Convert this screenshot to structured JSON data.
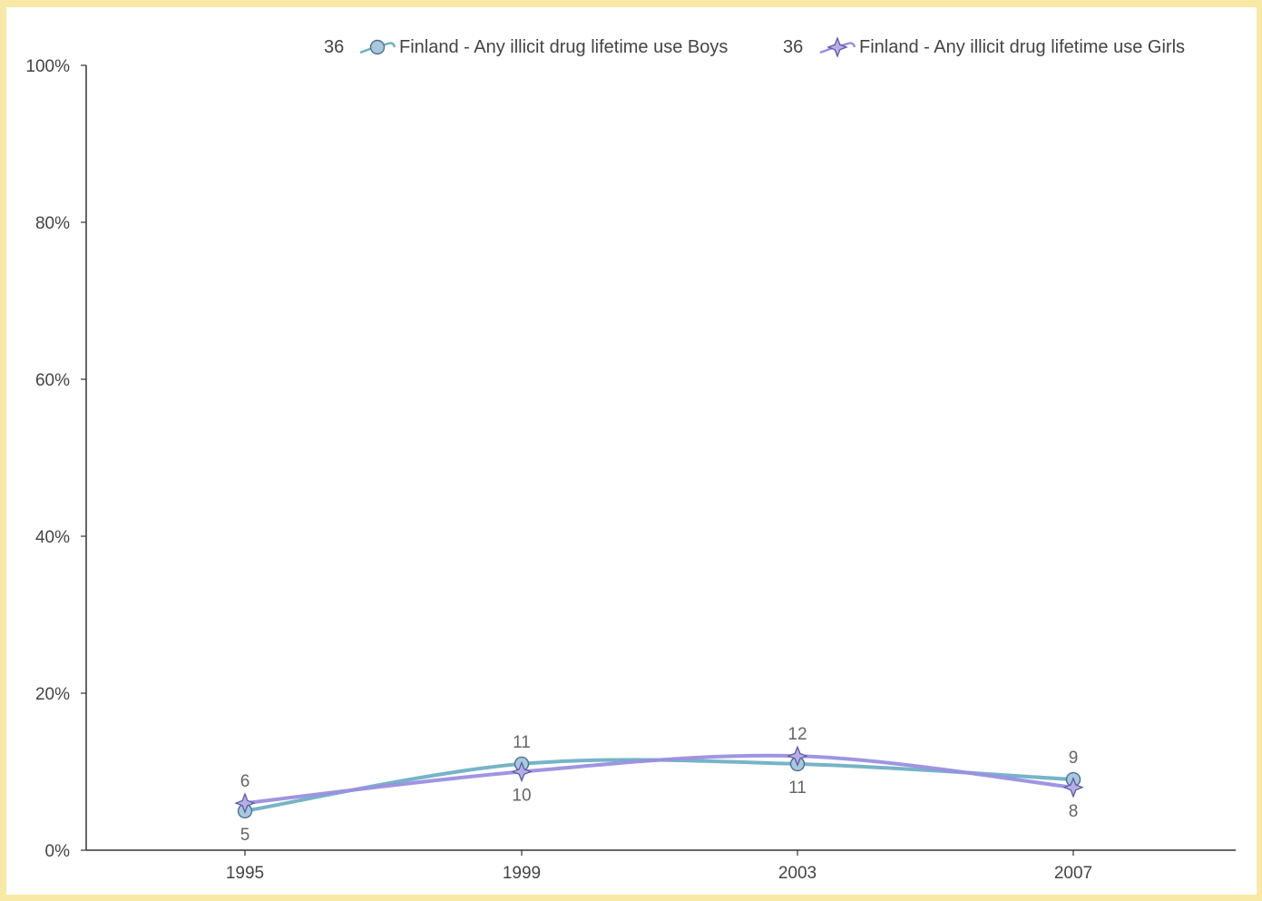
{
  "chart_data": {
    "type": "line",
    "x": [
      "1995",
      "1999",
      "2003",
      "2007"
    ],
    "yticks": [
      "0%",
      "20%",
      "40%",
      "60%",
      "80%",
      "100%"
    ],
    "ylim": [
      0,
      100
    ],
    "grid": false,
    "legend_position": "top-right",
    "series": [
      {
        "name": "Finland - Any illicit drug lifetime use Boys",
        "legend_prefix": "36",
        "values": [
          5,
          11,
          11,
          9
        ],
        "labels": [
          "5",
          "11",
          "11",
          "9"
        ],
        "label_side": [
          "below",
          "above",
          "below",
          "above"
        ],
        "color": "#6fb0c4",
        "marker": "circle",
        "marker_fill": "#a8c8dc",
        "marker_stroke": "#4a6f95"
      },
      {
        "name": "Finland - Any illicit drug lifetime use Girls",
        "legend_prefix": "36",
        "values": [
          6,
          10,
          12,
          8
        ],
        "labels": [
          "6",
          "10",
          "12",
          "8"
        ],
        "label_side": [
          "above",
          "below",
          "above",
          "below"
        ],
        "color": "#9a8fe0",
        "marker": "star",
        "marker_fill": "#b6aee6",
        "marker_stroke": "#5c5aa8"
      }
    ]
  }
}
